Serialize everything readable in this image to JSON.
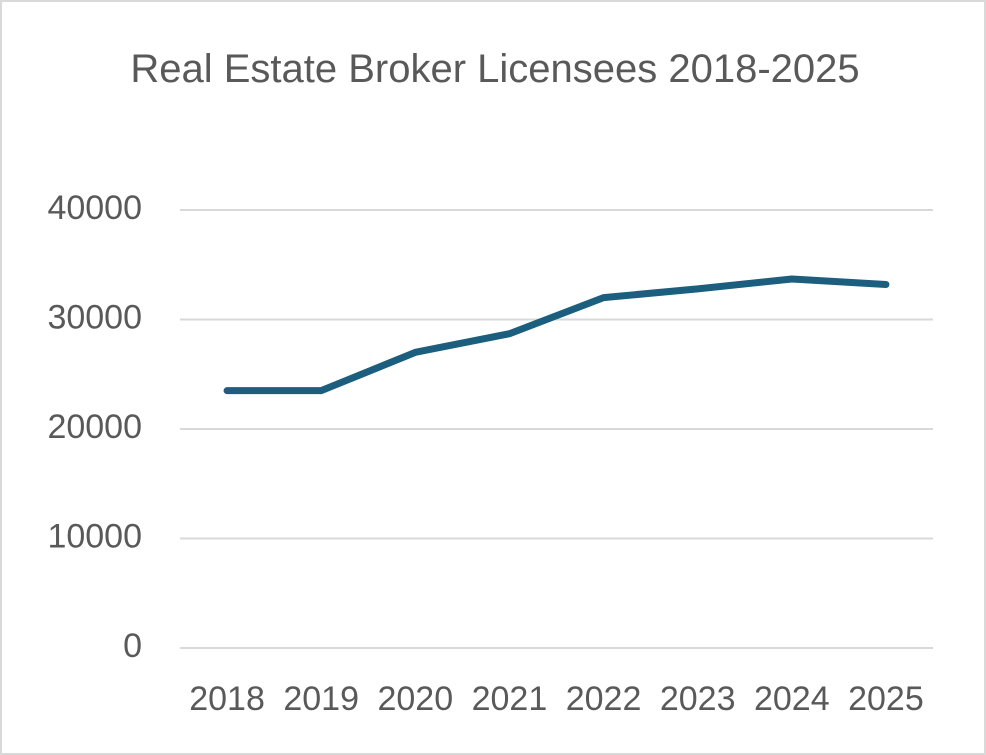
{
  "chart_data": {
    "type": "line",
    "title": "Real Estate Broker Licensees 2018-2025",
    "categories": [
      "2018",
      "2019",
      "2020",
      "2021",
      "2022",
      "2023",
      "2024",
      "2025"
    ],
    "series": [
      {
        "name": "Licensees",
        "color": "#1b5e7e",
        "values": [
          23500,
          23500,
          27000,
          28700,
          32000,
          32800,
          33700,
          33200
        ]
      }
    ],
    "ylim": [
      0,
      40000
    ],
    "yticks": [
      0,
      10000,
      20000,
      30000,
      40000
    ],
    "grid": true
  }
}
